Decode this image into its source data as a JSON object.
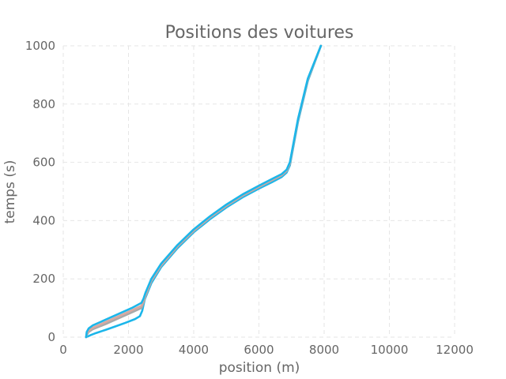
{
  "chart_data": {
    "type": "line",
    "title": "Positions des voitures",
    "xlabel": "position (m)",
    "ylabel": "temps (s)",
    "xlim": [
      0,
      12000
    ],
    "ylim": [
      0,
      1000
    ],
    "xticks": [
      0,
      2000,
      4000,
      6000,
      8000,
      10000,
      12000
    ],
    "yticks": [
      0,
      200,
      400,
      600,
      800,
      1000
    ],
    "grid": true,
    "series": [
      {
        "color": "#1bb6ea",
        "x": [
          700,
          760,
          860,
          1000,
          1300,
          1600,
          1900,
          2200,
          2350,
          2420,
          2500,
          2700,
          3000,
          3500,
          4000,
          4500,
          5000,
          5500,
          6000,
          6400,
          6700,
          6850,
          6950,
          7200,
          7500,
          7900
        ],
        "y": [
          0,
          3,
          8,
          14,
          25,
          37,
          49,
          62,
          72,
          90,
          130,
          185,
          240,
          305,
          360,
          405,
          445,
          480,
          510,
          532,
          550,
          565,
          590,
          740,
          880,
          1000
        ]
      },
      {
        "color": "#a9a9a9",
        "x": [
          700,
          720,
          780,
          900,
          1300,
          1700,
          2100,
          2400,
          2460,
          2520,
          2700,
          3000,
          3500,
          4000,
          4500,
          5000,
          5500,
          6000,
          6400,
          6700,
          6850,
          6950,
          7200,
          7500,
          7900
        ],
        "y": [
          0,
          8,
          18,
          27,
          45,
          65,
          85,
          100,
          118,
          140,
          192,
          245,
          310,
          364,
          410,
          450,
          485,
          515,
          538,
          555,
          570,
          595,
          745,
          883,
          1000
        ]
      },
      {
        "color": "#d9a8a0",
        "x": [
          700,
          720,
          780,
          900,
          1300,
          1700,
          2100,
          2400,
          2460,
          2520,
          2700,
          3000,
          3500,
          4000,
          4500,
          5000,
          5500,
          6000,
          6400,
          6700,
          6850,
          6950,
          7200,
          7500,
          7900
        ],
        "y": [
          0,
          12,
          23,
          32,
          52,
          72,
          92,
          108,
          125,
          145,
          196,
          248,
          313,
          367,
          412,
          452,
          487,
          517,
          540,
          557,
          572,
          598,
          748,
          886,
          1000
        ]
      },
      {
        "color": "#1bb6ea",
        "x": [
          700,
          720,
          780,
          900,
          1300,
          1700,
          2100,
          2400,
          2460,
          2520,
          2700,
          3000,
          3500,
          4000,
          4500,
          5000,
          5500,
          6000,
          6400,
          6700,
          6850,
          6950,
          7200,
          7500,
          7900
        ],
        "y": [
          0,
          18,
          30,
          40,
          60,
          80,
          100,
          118,
          132,
          152,
          200,
          252,
          316,
          370,
          415,
          455,
          490,
          520,
          543,
          560,
          575,
          601,
          750,
          888,
          1000
        ]
      }
    ]
  }
}
